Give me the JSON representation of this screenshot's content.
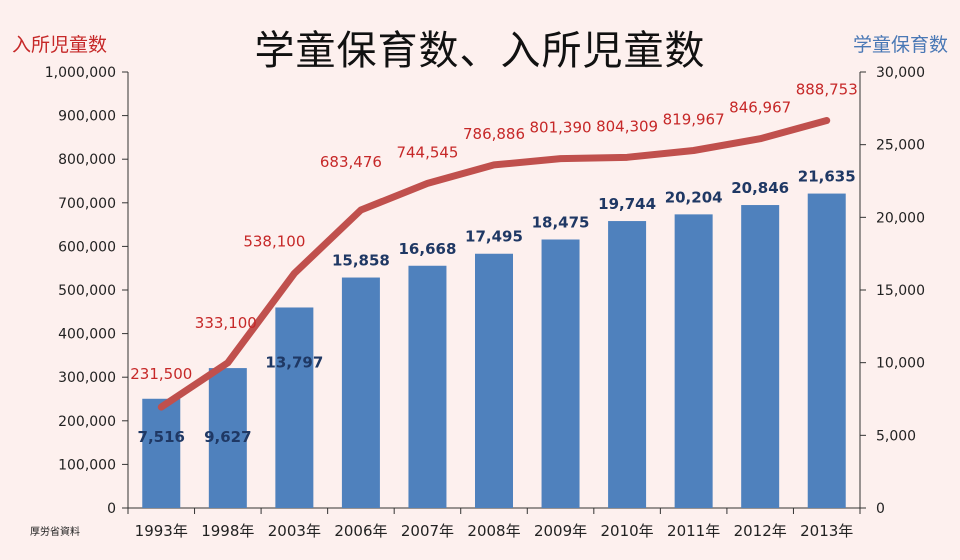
{
  "title": "学童保育数、入所児童数",
  "source": "厚労省資料",
  "chart_data": {
    "type": "bar",
    "categories": [
      "1993年",
      "1998年",
      "2003年",
      "2006年",
      "2007年",
      "2008年",
      "2009年",
      "2010年",
      "2011年",
      "2012年",
      "2013年"
    ],
    "series": [
      {
        "name": "学童保育数",
        "type": "bar",
        "axis": "right",
        "color": "#4f81bd",
        "values": [
          7516,
          9627,
          13797,
          15858,
          16668,
          17495,
          18475,
          19744,
          20204,
          20846,
          21635
        ],
        "labels": [
          "7,516",
          "9,627",
          "13,797",
          "15,858",
          "16,668",
          "17,495",
          "18,475",
          "19,744",
          "20,204",
          "20,846",
          "21,635"
        ]
      },
      {
        "name": "入所児童数",
        "type": "line",
        "axis": "left",
        "color": "#c0504d",
        "values": [
          231500,
          333100,
          538100,
          683476,
          744545,
          786886,
          801390,
          804309,
          819967,
          846967,
          888753
        ],
        "labels": [
          "231,500",
          "333,100",
          "538,100",
          "683,476",
          "744,545",
          "786,886",
          "801,390",
          "804,309",
          "819,967",
          "846,967",
          "888,753"
        ]
      }
    ],
    "left_axis": {
      "label": "入所児童数",
      "ylim": [
        0,
        1000000
      ],
      "ticks": [
        "0",
        "100,000",
        "200,000",
        "300,000",
        "400,000",
        "500,000",
        "600,000",
        "700,000",
        "800,000",
        "900,000",
        "1,000,000"
      ]
    },
    "right_axis": {
      "label": "学童保育数",
      "ylim": [
        0,
        30000
      ],
      "ticks": [
        "0",
        "5,000",
        "10,000",
        "15,000",
        "20,000",
        "25,000",
        "30,000"
      ]
    },
    "grid": false,
    "legend": "none"
  }
}
